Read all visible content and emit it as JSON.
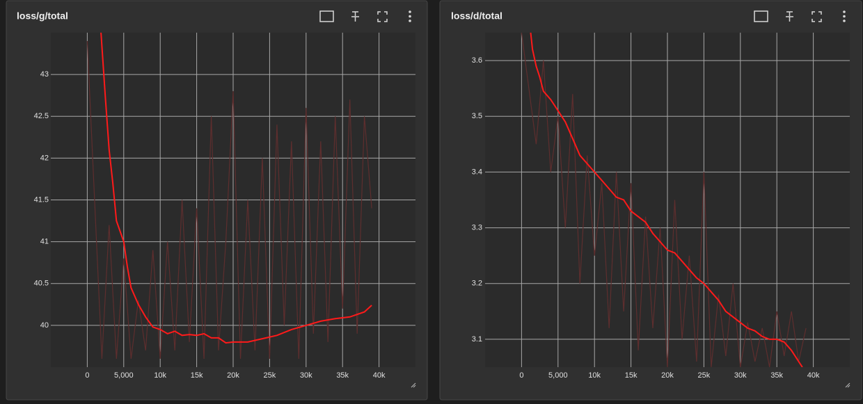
{
  "chart_data": [
    {
      "type": "line",
      "title": "loss/g/total",
      "grid": true,
      "xlim": [
        -5000,
        45000
      ],
      "ylim": [
        39.5,
        43.5
      ],
      "xticks": [
        0,
        {
          "value": 5000,
          "label": "5,000"
        },
        {
          "value": 10000,
          "label": "10k"
        },
        {
          "value": 15000,
          "label": "15k"
        },
        {
          "value": 20000,
          "label": "20k"
        },
        {
          "value": 25000,
          "label": "25k"
        },
        {
          "value": 30000,
          "label": "30k"
        },
        {
          "value": 35000,
          "label": "35k"
        },
        {
          "value": 40000,
          "label": "40k"
        }
      ],
      "yticks": [
        40,
        40.5,
        41,
        41.5,
        42,
        42.5,
        43
      ],
      "series": [
        {
          "color": "#5e2e2e",
          "x": [
            0,
            1000,
            2000,
            3000,
            4000,
            5000,
            6000,
            7000,
            8000,
            9000,
            10000,
            11000,
            12000,
            13000,
            14000,
            15000,
            16000,
            17000,
            18000,
            19000,
            20000,
            21000,
            22000,
            23000,
            24000,
            25000,
            26000,
            27000,
            28000,
            29000,
            30000,
            31000,
            32000,
            33000,
            34000,
            35000,
            36000,
            37000,
            38000,
            39000
          ],
          "values": [
            43.4,
            41.5,
            39.6,
            41.2,
            39.6,
            40.8,
            39.6,
            40.3,
            39.7,
            40.9,
            39.6,
            41.0,
            39.7,
            41.5,
            39.8,
            41.4,
            39.6,
            42.5,
            39.7,
            41.0,
            42.8,
            39.6,
            41.5,
            39.7,
            42.0,
            39.6,
            42.4,
            40.0,
            42.2,
            39.6,
            42.6,
            39.9,
            42.2,
            39.8,
            42.5,
            40.2,
            42.7,
            39.9,
            42.5,
            41.4
          ]
        },
        {
          "color": "#ff1a1a",
          "x": [
            1800,
            2500,
            3000,
            3500,
            4000,
            5000,
            5500,
            6000,
            7000,
            8000,
            9000,
            10000,
            11000,
            12000,
            13000,
            14000,
            15000,
            16000,
            17000,
            18000,
            19000,
            20000,
            22000,
            24000,
            26000,
            28000,
            30000,
            32000,
            34000,
            36000,
            38000,
            39000
          ],
          "values": [
            43.6,
            42.7,
            42.1,
            41.7,
            41.25,
            41.0,
            40.7,
            40.45,
            40.25,
            40.1,
            39.98,
            39.95,
            39.9,
            39.93,
            39.88,
            39.89,
            39.88,
            39.9,
            39.85,
            39.85,
            39.79,
            39.8,
            39.8,
            39.84,
            39.88,
            39.95,
            40.0,
            40.05,
            40.08,
            40.1,
            40.16,
            40.24
          ]
        }
      ]
    },
    {
      "type": "line",
      "title": "loss/d/total",
      "grid": true,
      "xlim": [
        -5000,
        45000
      ],
      "ylim": [
        3.05,
        3.65
      ],
      "xticks": [
        0,
        {
          "value": 5000,
          "label": "5,000"
        },
        {
          "value": 10000,
          "label": "10k"
        },
        {
          "value": 15000,
          "label": "15k"
        },
        {
          "value": 20000,
          "label": "20k"
        },
        {
          "value": 25000,
          "label": "25k"
        },
        {
          "value": 30000,
          "label": "30k"
        },
        {
          "value": 35000,
          "label": "35k"
        },
        {
          "value": 40000,
          "label": "40k"
        }
      ],
      "yticks": [
        3.1,
        3.2,
        3.3,
        3.4,
        3.5,
        3.6
      ],
      "series": [
        {
          "color": "#5e2e2e",
          "x": [
            0,
            1000,
            2000,
            3000,
            4000,
            5000,
            6000,
            7000,
            8000,
            9000,
            10000,
            11000,
            12000,
            13000,
            14000,
            15000,
            16000,
            17000,
            18000,
            19000,
            20000,
            21000,
            22000,
            23000,
            24000,
            25000,
            26000,
            27000,
            28000,
            29000,
            30000,
            31000,
            32000,
            33000,
            34000,
            35000,
            36000,
            37000,
            38000,
            39000
          ],
          "values": [
            3.65,
            3.55,
            3.45,
            3.6,
            3.4,
            3.5,
            3.3,
            3.54,
            3.2,
            3.43,
            3.25,
            3.38,
            3.12,
            3.4,
            3.15,
            3.38,
            3.08,
            3.32,
            3.12,
            3.3,
            3.05,
            3.35,
            3.1,
            3.25,
            3.06,
            3.4,
            3.05,
            3.18,
            3.07,
            3.2,
            3.05,
            3.13,
            3.06,
            3.12,
            3.05,
            3.15,
            3.07,
            3.15,
            3.06,
            3.12
          ]
        },
        {
          "color": "#ff1a1a",
          "x": [
            1250,
            1500,
            2000,
            2500,
            3000,
            4000,
            5000,
            6000,
            7000,
            8000,
            9000,
            10000,
            11000,
            12000,
            13000,
            14000,
            15000,
            16000,
            17000,
            18000,
            19000,
            20000,
            21000,
            22000,
            23000,
            24000,
            25000,
            26000,
            27000,
            28000,
            29000,
            30000,
            31000,
            32000,
            33000,
            34000,
            35000,
            36000,
            37000,
            38000,
            38500
          ],
          "values": [
            3.65,
            3.62,
            3.59,
            3.57,
            3.545,
            3.53,
            3.51,
            3.49,
            3.46,
            3.43,
            3.415,
            3.4,
            3.385,
            3.37,
            3.355,
            3.35,
            3.33,
            3.32,
            3.31,
            3.29,
            3.275,
            3.26,
            3.255,
            3.24,
            3.225,
            3.21,
            3.2,
            3.185,
            3.17,
            3.15,
            3.14,
            3.13,
            3.12,
            3.115,
            3.105,
            3.1,
            3.1,
            3.095,
            3.08,
            3.06,
            3.05
          ]
        }
      ]
    }
  ]
}
